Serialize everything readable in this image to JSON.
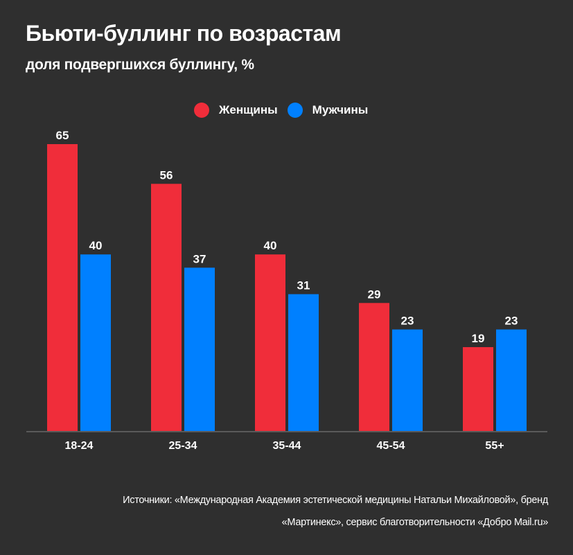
{
  "title": "Бьюти-буллинг по возрастам",
  "subtitle": "доля подвергшихся буллингу, %",
  "legend": [
    {
      "label": "Женщины",
      "color": "#f02d3a"
    },
    {
      "label": "Мужчины",
      "color": "#0080ff"
    }
  ],
  "source": {
    "line1": "Источники: «Международная Академия эстетической медицины Натальи Михайловой», бренд",
    "line2": "«Мартинекс», сервис благотворительности «Добро Mail.ru»"
  },
  "chart_data": {
    "type": "bar",
    "title": "Бьюти-буллинг по возрастам",
    "subtitle": "доля подвергшихся буллингу, %",
    "xlabel": "",
    "ylabel": "",
    "categories": [
      "18-24",
      "25-34",
      "35-44",
      "45-54",
      "55+"
    ],
    "series": [
      {
        "name": "Женщины",
        "color": "#f02d3a",
        "values": [
          65,
          56,
          40,
          29,
          19
        ]
      },
      {
        "name": "Мужчины",
        "color": "#0080ff",
        "values": [
          40,
          37,
          31,
          23,
          23
        ]
      }
    ],
    "ylim": [
      0,
      65
    ],
    "grid": false,
    "legend_position": "top-center",
    "data_labels": true
  }
}
